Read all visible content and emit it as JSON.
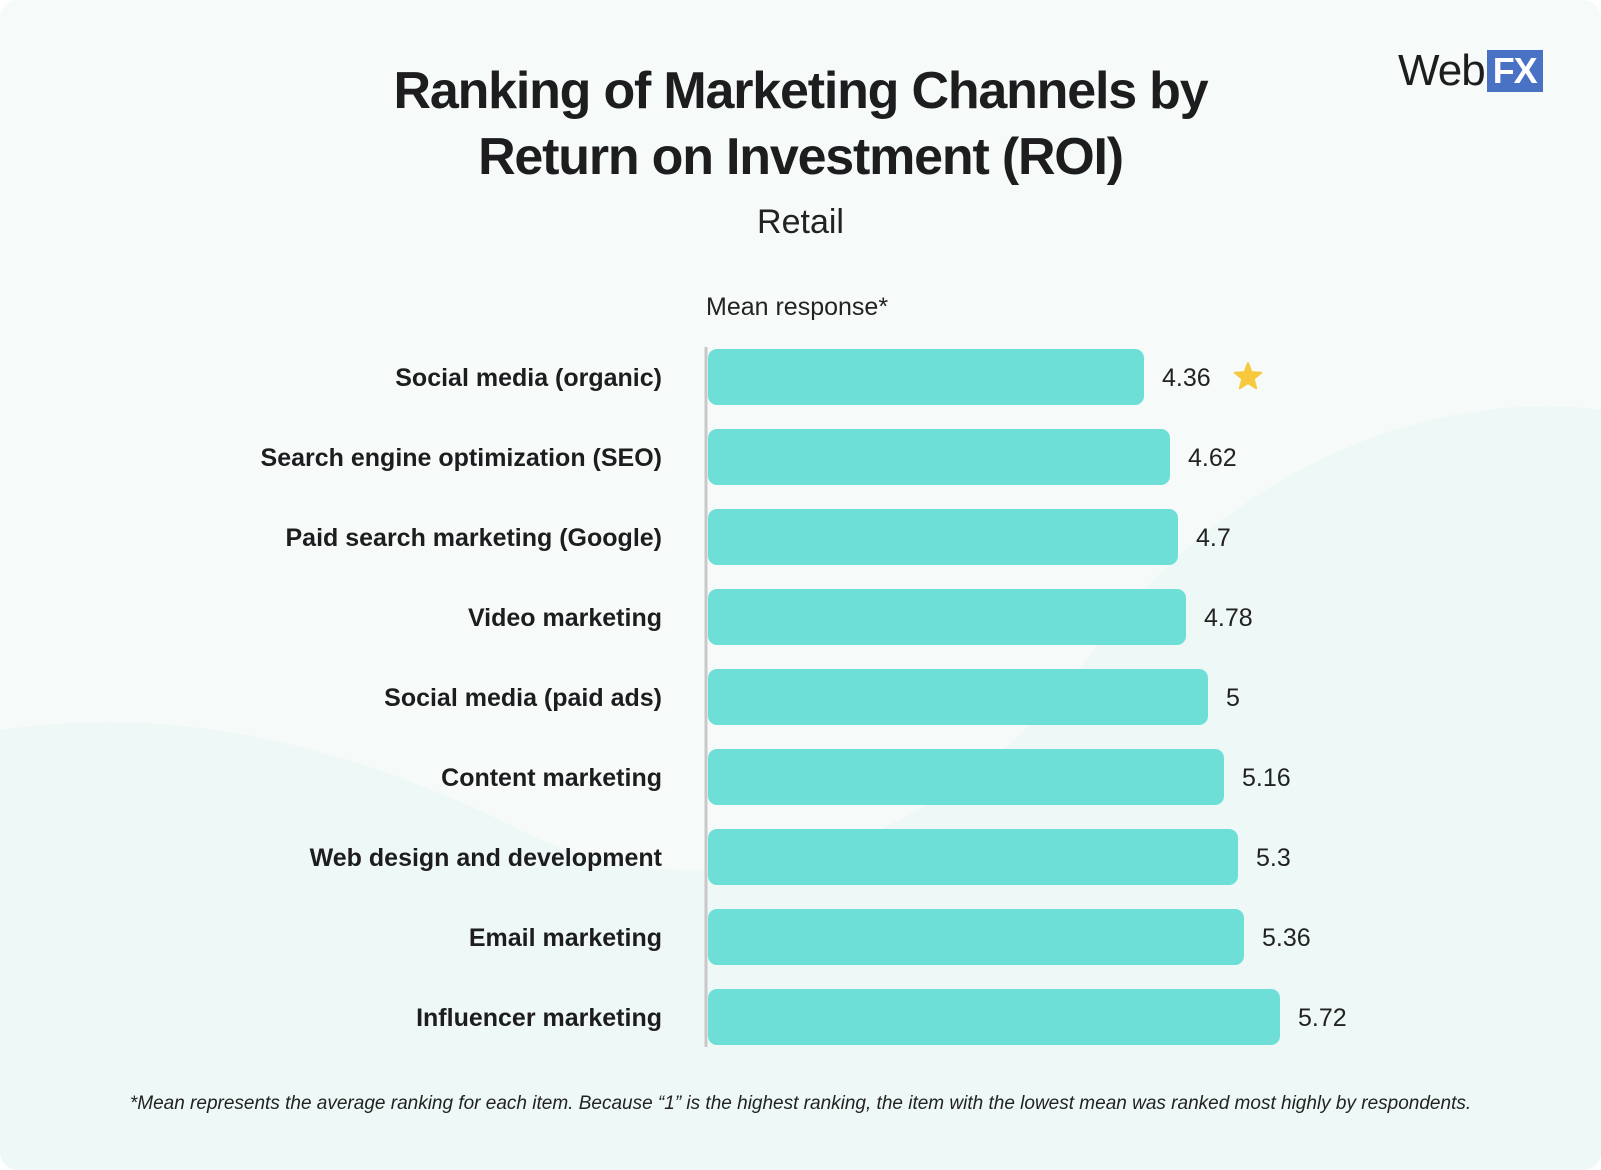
{
  "title_line1": "Ranking of Marketing Channels by",
  "title_line2": "Return on Investment (ROI)",
  "subtitle": "Retail",
  "logo": {
    "text": "Web",
    "badge": "FX"
  },
  "footnote": "*Mean represents the average ranking for each item. Because “1” is the highest ranking, the item with the lowest mean was ranked most highly by respondents.",
  "colors": {
    "bar": "#6ddfd6",
    "badge": "#4a72c4",
    "star": "#f7ca3e",
    "axis": "#c8c8c8"
  },
  "chart_data": {
    "type": "bar",
    "orientation": "horizontal",
    "title": "Ranking of Marketing Channels by Return on Investment (ROI)",
    "subtitle": "Retail",
    "xlabel": "Mean response*",
    "ylabel": "",
    "categories": [
      "Social media (organic)",
      "Search engine optimization (SEO)",
      "Paid search marketing (Google)",
      "Video marketing",
      "Social media (paid ads)",
      "Content marketing",
      "Web design and development",
      "Email marketing",
      "Influencer marketing"
    ],
    "values": [
      4.36,
      4.62,
      4.7,
      4.78,
      5,
      5.16,
      5.3,
      5.36,
      5.72
    ],
    "value_labels": [
      "4.36",
      "4.62",
      "4.7",
      "4.78",
      "5",
      "5.16",
      "5.3",
      "5.36",
      "5.72"
    ],
    "highlight": {
      "index": 0,
      "icon": "star-icon"
    },
    "xlim": [
      0,
      5.72
    ],
    "grid": false,
    "legend": "none"
  }
}
